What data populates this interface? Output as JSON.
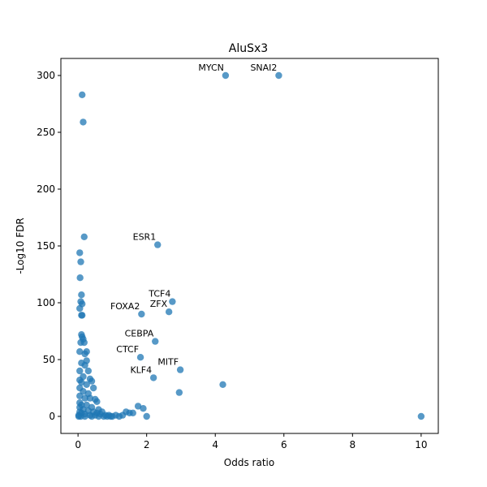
{
  "chart_data": {
    "type": "scatter",
    "title": "AluSx3",
    "xlabel": "Odds ratio",
    "ylabel": "-Log10 FDR",
    "xlim": [
      -0.5,
      10.5
    ],
    "ylim": [
      -15,
      315
    ],
    "xticks": [
      0,
      2,
      4,
      6,
      8,
      10
    ],
    "yticks": [
      0,
      50,
      100,
      150,
      200,
      250,
      300
    ],
    "grid": false,
    "marker_color": "#1f77b4",
    "points": [
      [
        0.12,
        283
      ],
      [
        0.15,
        259
      ],
      [
        0.18,
        158
      ],
      [
        0.05,
        144
      ],
      [
        0.08,
        136
      ],
      [
        0.06,
        122
      ],
      [
        0.1,
        107
      ],
      [
        0.08,
        101
      ],
      [
        0.12,
        99
      ],
      [
        0.05,
        95
      ],
      [
        0.1,
        89
      ],
      [
        0.12,
        89
      ],
      [
        0.1,
        72
      ],
      [
        0.12,
        70
      ],
      [
        0.15,
        68
      ],
      [
        0.08,
        65
      ],
      [
        0.18,
        65
      ],
      [
        0.25,
        57
      ],
      [
        0.05,
        57
      ],
      [
        0.2,
        55
      ],
      [
        0.25,
        49
      ],
      [
        0.1,
        47
      ],
      [
        0.2,
        45
      ],
      [
        0.3,
        40
      ],
      [
        0.05,
        40
      ],
      [
        0.15,
        35
      ],
      [
        0.35,
        33
      ],
      [
        0.05,
        32
      ],
      [
        0.1,
        30
      ],
      [
        0.25,
        28
      ],
      [
        0.4,
        31
      ],
      [
        0.45,
        25
      ],
      [
        0.05,
        25
      ],
      [
        0.15,
        22
      ],
      [
        0.3,
        20
      ],
      [
        0.05,
        18
      ],
      [
        0.2,
        16
      ],
      [
        0.35,
        16
      ],
      [
        0.5,
        15
      ],
      [
        0.55,
        13
      ],
      [
        0.05,
        12
      ],
      [
        0.1,
        10
      ],
      [
        0.25,
        10
      ],
      [
        0.4,
        8
      ],
      [
        0.6,
        6
      ],
      [
        0.7,
        4
      ],
      [
        0.05,
        8
      ],
      [
        0.15,
        6
      ],
      [
        0.3,
        5
      ],
      [
        0.45,
        4
      ],
      [
        0.55,
        3
      ],
      [
        0.65,
        2
      ],
      [
        0.8,
        1
      ],
      [
        0.9,
        1
      ],
      [
        1.0,
        0
      ],
      [
        1.1,
        1
      ],
      [
        1.2,
        0
      ],
      [
        1.3,
        1
      ],
      [
        0.05,
        4
      ],
      [
        0.1,
        3
      ],
      [
        0.2,
        2
      ],
      [
        0.35,
        1
      ],
      [
        0.5,
        1
      ],
      [
        0.75,
        0
      ],
      [
        0.95,
        0
      ],
      [
        0.02,
        1
      ],
      [
        0.02,
        0
      ],
      [
        0.08,
        0
      ],
      [
        0.2,
        0
      ],
      [
        0.4,
        0
      ],
      [
        0.6,
        0
      ],
      [
        0.85,
        0
      ],
      [
        1.4,
        4
      ],
      [
        1.5,
        3
      ],
      [
        1.6,
        3
      ],
      [
        1.75,
        9
      ],
      [
        1.9,
        7
      ],
      [
        2.0,
        0
      ],
      [
        4.3,
        300
      ],
      [
        5.85,
        300
      ],
      [
        2.32,
        151
      ],
      [
        2.75,
        101
      ],
      [
        1.85,
        90
      ],
      [
        2.65,
        92
      ],
      [
        2.25,
        66
      ],
      [
        1.82,
        52
      ],
      [
        2.98,
        41
      ],
      [
        2.2,
        34
      ],
      [
        4.22,
        28
      ],
      [
        2.95,
        21
      ],
      [
        10.0,
        0
      ]
    ],
    "annotations": [
      {
        "text": "MYCN",
        "x": 4.3,
        "y": 300
      },
      {
        "text": "SNAI2",
        "x": 5.85,
        "y": 300
      },
      {
        "text": "ESR1",
        "x": 2.32,
        "y": 151
      },
      {
        "text": "TCF4",
        "x": 2.75,
        "y": 101
      },
      {
        "text": "FOXA2",
        "x": 1.85,
        "y": 90
      },
      {
        "text": "ZFX",
        "x": 2.65,
        "y": 92
      },
      {
        "text": "CEBPA",
        "x": 2.25,
        "y": 66
      },
      {
        "text": "CTCF",
        "x": 1.82,
        "y": 52
      },
      {
        "text": "MITF",
        "x": 2.98,
        "y": 41
      },
      {
        "text": "KLF4",
        "x": 2.2,
        "y": 34
      }
    ]
  }
}
